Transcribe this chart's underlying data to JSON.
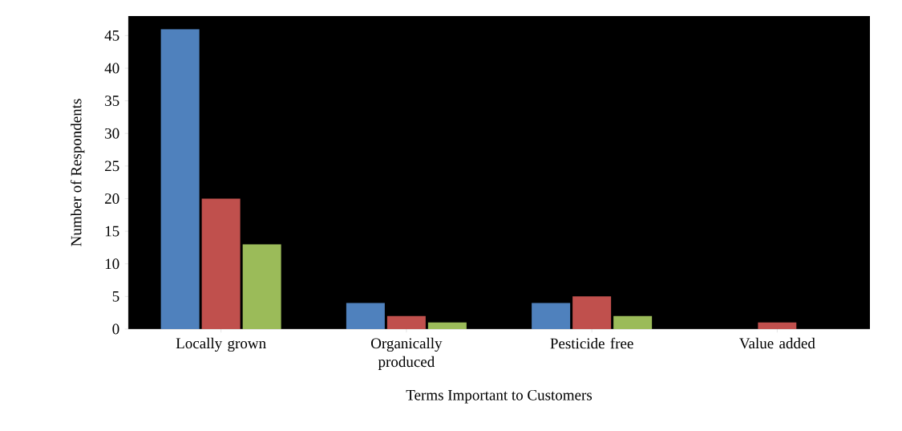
{
  "chart_data": {
    "type": "bar",
    "xlabel": "Terms Important to Customers",
    "ylabel": "Number of Respondents",
    "categories": [
      "Locally grown",
      "Organically produced",
      "Pesticide free",
      "Value added"
    ],
    "series": [
      {
        "color": "#4f81bd",
        "values": [
          46,
          4,
          4,
          0
        ]
      },
      {
        "color": "#c0504d",
        "values": [
          20,
          2,
          5,
          1
        ]
      },
      {
        "color": "#9bbb59",
        "values": [
          13,
          1,
          2,
          0
        ]
      }
    ],
    "ylim": [
      0,
      48
    ],
    "yticks": [
      0,
      5,
      10,
      15,
      20,
      25,
      30,
      35,
      40,
      45
    ],
    "grid": false
  }
}
